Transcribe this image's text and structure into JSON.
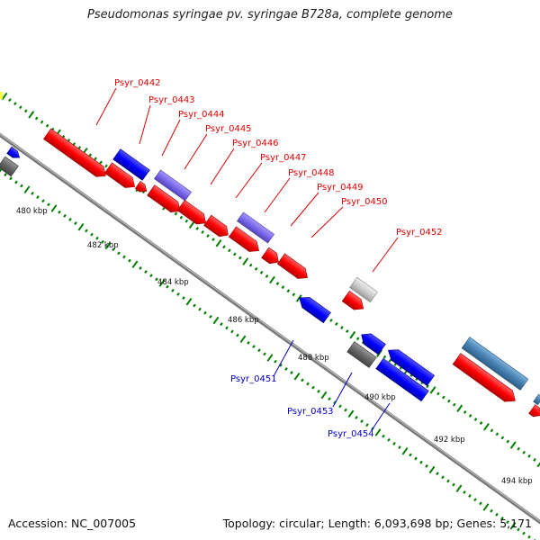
{
  "title": "Pseudomonas syringae pv. syringae B728a, complete genome",
  "footer": {
    "accession": "Accession: NC_007005",
    "info": "Topology: circular; Length: 6,093,698 bp; Genes: 5,171"
  },
  "colors": {
    "red_gene": "#ff0000",
    "blue_gene": "#0000ff",
    "purple_gene": "#7b68ee",
    "gray_gene": "#666666",
    "light_gray_gene": "#cccccc",
    "steel_blue_gene": "#4682b4",
    "tick": "#008000",
    "backbone": "#888888"
  },
  "scale_labels": [
    "480 kbp",
    "482 kbp",
    "484 kbp",
    "486 kbp",
    "488 kbp",
    "490 kbp",
    "492 kbp",
    "494 kbp"
  ],
  "genes_forward": [
    "Psyr_0442",
    "Psyr_0443",
    "Psyr_0444",
    "Psyr_0445",
    "Psyr_0446",
    "Psyr_0447",
    "Psyr_0448",
    "Psyr_0449",
    "Psyr_0450",
    "Psyr_0452"
  ],
  "genes_reverse": [
    "Psyr_0451",
    "Psyr_0453",
    "Psyr_0454"
  ]
}
